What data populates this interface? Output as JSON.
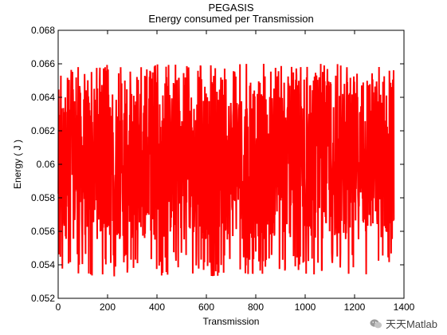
{
  "chart_data": {
    "type": "line",
    "title": "PEGASIS",
    "subtitle": "Energy consumed per Transmission",
    "xlabel": "Transmission",
    "ylabel": "Energy ( J )",
    "xlim": [
      0,
      1400
    ],
    "ylim": [
      0.052,
      0.068
    ],
    "xticks": [
      "0",
      "200",
      "400",
      "600",
      "800",
      "1000",
      "1200",
      "1400"
    ],
    "yticks": [
      "0.052",
      "0.054",
      "0.056",
      "0.058",
      "0.06",
      "0.062",
      "0.064",
      "0.066",
      "0.068"
    ],
    "grid": false,
    "series": [
      {
        "color": "#ff0000",
        "x_range": [
          1,
          1360
        ],
        "y_min": 0.0533,
        "y_max": 0.066,
        "mean": 0.06
      }
    ]
  },
  "watermark": {
    "text": "天天Matlab",
    "icon": "wechat-icon"
  }
}
